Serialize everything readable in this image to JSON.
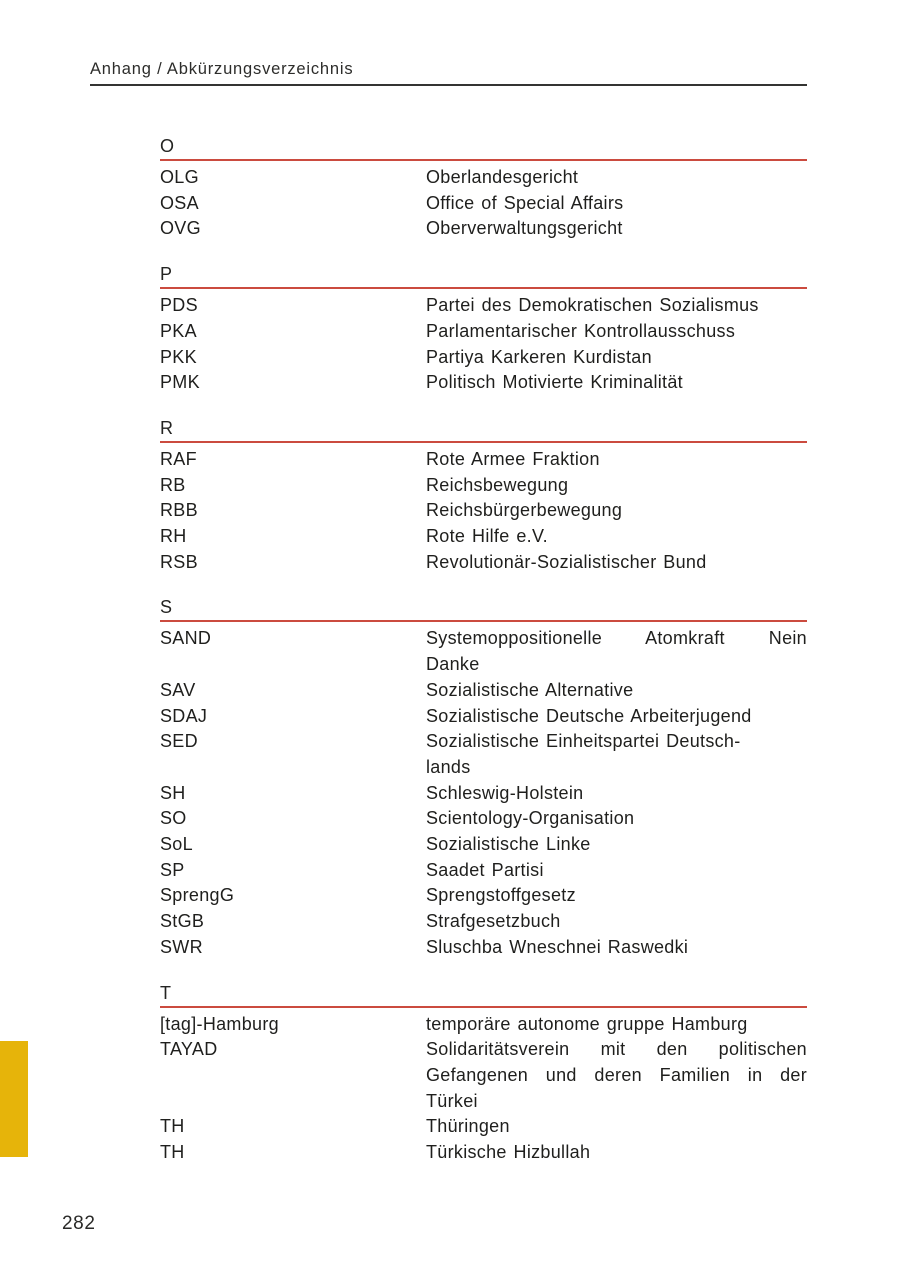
{
  "page": {
    "header": "Anhang / Abkürzungsverzeichnis",
    "page_number": "282"
  },
  "colors": {
    "section_rule": "#cb4b3f",
    "header_rule": "#343432",
    "text": "#1f1f1d",
    "margin_marker": "#e6b40a"
  },
  "sections": [
    {
      "letter": "O",
      "rows": [
        {
          "abbr": "OLG",
          "def": [
            "Oberlandesgericht"
          ]
        },
        {
          "abbr": "OSA",
          "def": [
            "Office of Special Affairs"
          ]
        },
        {
          "abbr": "OVG",
          "def": [
            "Oberverwaltungsgericht"
          ]
        }
      ]
    },
    {
      "letter": "P",
      "rows": [
        {
          "abbr": "PDS",
          "def": [
            "Partei des Demokratischen Sozialismus"
          ]
        },
        {
          "abbr": "PKA",
          "def": [
            "Parlamentarischer Kontrollausschuss"
          ]
        },
        {
          "abbr": "PKK",
          "def": [
            "Partiya Karkeren Kurdistan"
          ]
        },
        {
          "abbr": "PMK",
          "def": [
            "Politisch Motivierte Kriminalität"
          ]
        }
      ]
    },
    {
      "letter": "R",
      "rows": [
        {
          "abbr": "RAF",
          "def": [
            "Rote Armee Fraktion"
          ]
        },
        {
          "abbr": "RB",
          "def": [
            "Reichsbewegung"
          ]
        },
        {
          "abbr": "RBB",
          "def": [
            "Reichsbürgerbewegung"
          ]
        },
        {
          "abbr": "RH",
          "def": [
            "Rote Hilfe e.V."
          ]
        },
        {
          "abbr": "RSB",
          "def": [
            "Revolutionär-Sozialistischer Bund"
          ]
        }
      ]
    },
    {
      "letter": "S",
      "rows": [
        {
          "abbr": "SAND",
          "def": [
            "Systemoppositionelle Atomkraft Nein",
            "Danke"
          ],
          "justified": true
        },
        {
          "abbr": "SAV",
          "def": [
            "Sozialistische Alternative"
          ]
        },
        {
          "abbr": "SDAJ",
          "def": [
            "Sozialistische Deutsche Arbeiterjugend"
          ]
        },
        {
          "abbr": "SED",
          "def": [
            "Sozialistische Einheitspartei Deutsch-",
            "lands"
          ]
        },
        {
          "abbr": "SH",
          "def": [
            "Schleswig-Holstein"
          ]
        },
        {
          "abbr": "SO",
          "def": [
            "Scientology-Organisation"
          ]
        },
        {
          "abbr": "SoL",
          "def": [
            "Sozialistische Linke"
          ]
        },
        {
          "abbr": "SP",
          "def": [
            "Saadet Partisi"
          ]
        },
        {
          "abbr": "SprengG",
          "def": [
            "Sprengstoffgesetz"
          ]
        },
        {
          "abbr": "StGB",
          "def": [
            "Strafgesetzbuch"
          ]
        },
        {
          "abbr": "SWR",
          "def": [
            "Sluschba Wneschnei Raswedki"
          ]
        }
      ]
    },
    {
      "letter": "T",
      "rows": [
        {
          "abbr": "[tag]-Hamburg",
          "def": [
            "temporäre autonome gruppe Hamburg"
          ]
        },
        {
          "abbr": "TAYAD",
          "def": [
            "Solidaritätsverein mit den politischen",
            "Gefangenen und deren Familien in der",
            "Türkei"
          ],
          "justified": true
        },
        {
          "abbr": "TH",
          "def": [
            "Thüringen"
          ]
        },
        {
          "abbr": "TH",
          "def": [
            "Türkische Hizbullah"
          ]
        }
      ]
    }
  ]
}
